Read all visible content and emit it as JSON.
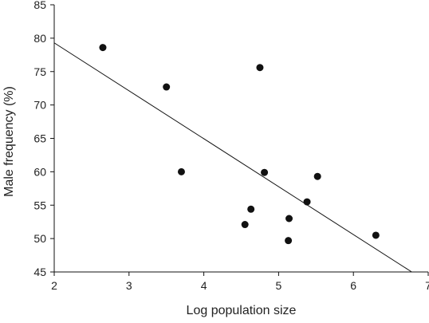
{
  "chart_data": {
    "type": "scatter",
    "xlabel": "Log population size",
    "ylabel": "Male frequency (%)",
    "xlim": [
      2,
      7
    ],
    "ylim": [
      45,
      85
    ],
    "xticks": [
      2,
      3,
      4,
      5,
      6,
      7
    ],
    "yticks": [
      45,
      50,
      55,
      60,
      65,
      70,
      75,
      80,
      85
    ],
    "grid": false,
    "points": [
      {
        "x": 2.65,
        "y": 78.6
      },
      {
        "x": 3.5,
        "y": 72.7
      },
      {
        "x": 3.7,
        "y": 60.0
      },
      {
        "x": 4.55,
        "y": 52.1
      },
      {
        "x": 4.63,
        "y": 54.4
      },
      {
        "x": 4.75,
        "y": 75.6
      },
      {
        "x": 4.81,
        "y": 59.9
      },
      {
        "x": 5.13,
        "y": 49.7
      },
      {
        "x": 5.14,
        "y": 53.0
      },
      {
        "x": 5.38,
        "y": 55.5
      },
      {
        "x": 5.52,
        "y": 59.3
      },
      {
        "x": 6.3,
        "y": 50.5
      }
    ],
    "regression_line": {
      "x": [
        2.0,
        6.78
      ],
      "y": [
        79.3,
        45.0
      ]
    },
    "colors": {
      "points": "#111111",
      "line": "#111111",
      "axis": "#111111"
    }
  }
}
